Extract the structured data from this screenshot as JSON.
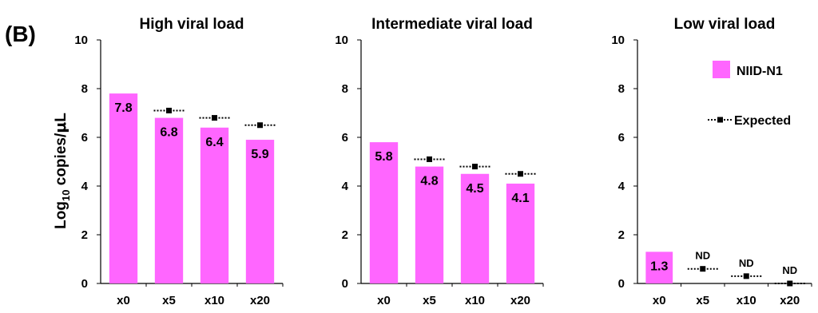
{
  "panel_label": "(B)",
  "y_axis_label": {
    "prefix": "Log",
    "subscript": "10",
    "suffix": " copies/",
    "mu": "μ",
    "unit": "L"
  },
  "colors": {
    "bar": "#ff66ff",
    "expected": "#000000",
    "axis": "#000000"
  },
  "chart_data": [
    {
      "type": "bar",
      "title": "High viral load",
      "categories": [
        "x0",
        "x5",
        "x10",
        "x20"
      ],
      "ylim": [
        0,
        10
      ],
      "yticks": [
        "0",
        "2",
        "4",
        "6",
        "8",
        "10"
      ],
      "series": [
        {
          "name": "NIID-N1",
          "type": "bar",
          "values": [
            7.8,
            6.8,
            6.4,
            5.9
          ],
          "labels": [
            "7.8",
            "6.8",
            "6.4",
            "5.9"
          ]
        },
        {
          "name": "Expected",
          "type": "line",
          "values": [
            null,
            7.1,
            6.8,
            6.5
          ]
        }
      ]
    },
    {
      "type": "bar",
      "title": "Intermediate viral load",
      "categories": [
        "x0",
        "x5",
        "x10",
        "x20"
      ],
      "ylim": [
        0,
        10
      ],
      "yticks": [
        "0",
        "2",
        "4",
        "6",
        "8",
        "10"
      ],
      "series": [
        {
          "name": "NIID-N1",
          "type": "bar",
          "values": [
            5.8,
            4.8,
            4.5,
            4.1
          ],
          "labels": [
            "5.8",
            "4.8",
            "4.5",
            "4.1"
          ]
        },
        {
          "name": "Expected",
          "type": "line",
          "values": [
            null,
            5.1,
            4.8,
            4.5
          ]
        }
      ]
    },
    {
      "type": "bar",
      "title": "Low viral load",
      "categories": [
        "x0",
        "x5",
        "x10",
        "x20"
      ],
      "ylim": [
        0,
        10
      ],
      "yticks": [
        "0",
        "2",
        "4",
        "6",
        "8",
        "10"
      ],
      "legend": {
        "placement": "top-right",
        "entries": [
          "NIID-N1",
          "Expected"
        ]
      },
      "series": [
        {
          "name": "NIID-N1",
          "type": "bar",
          "values": [
            1.3,
            null,
            null,
            null
          ],
          "labels": [
            "1.3",
            "ND",
            "ND",
            "ND"
          ]
        },
        {
          "name": "Expected",
          "type": "line",
          "values": [
            null,
            0.6,
            0.3,
            0.0
          ]
        }
      ]
    }
  ]
}
